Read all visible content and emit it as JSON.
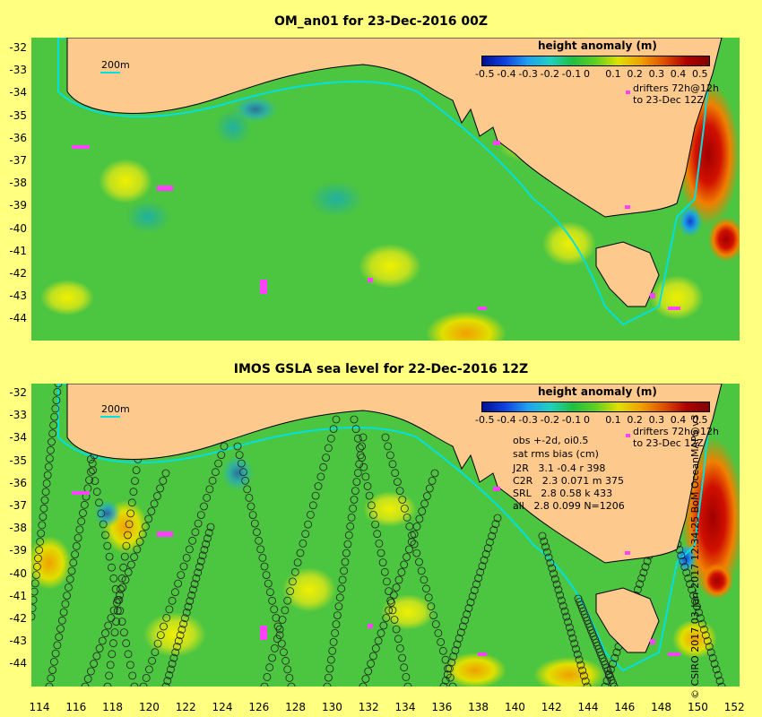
{
  "top_panel": {
    "title": "OM_an01 for 23-Dec-2016 00Z",
    "colorbar_title": "height anomaly (m)",
    "colorbar_ticks": [
      "-0.5",
      "-0.4",
      "-0.3",
      "-0.2",
      "-0.1",
      "0",
      "0.1",
      "0.2",
      "0.3",
      "0.4",
      "0.5"
    ],
    "scale_label": "200m",
    "drifters_line1": "drifters 72h@12h",
    "drifters_line2": "to 23-Dec 12Z"
  },
  "bottom_panel": {
    "title": "IMOS GSLA sea level  for 22-Dec-2016 12Z",
    "colorbar_title": "height anomaly (m)",
    "colorbar_ticks": [
      "-0.5",
      "-0.4",
      "-0.3",
      "-0.2",
      "-0.1",
      "0",
      "0.1",
      "0.2",
      "0.3",
      "0.4",
      "0.5"
    ],
    "scale_label": "200m",
    "drifters_line1": "drifters 72h@12h",
    "drifters_line2": "to 23-Dec 12Z",
    "stats": {
      "line1": "obs +-2d, oi0.5",
      "line2": "sat rms bias (cm)",
      "rows": [
        "J2R   3.1 -0.4 r 398",
        "C2R   2.3 0.071 m 375",
        "SRL   2.8 0.58 k 433",
        "all   2.8 0.099 N=1206"
      ]
    }
  },
  "latitudes": [
    "-32",
    "-33",
    "-34",
    "-35",
    "-36",
    "-37",
    "-38",
    "-39",
    "-40",
    "-41",
    "-42",
    "-43",
    "-44"
  ],
  "longitudes": [
    "114",
    "116",
    "118",
    "120",
    "122",
    "124",
    "126",
    "128",
    "130",
    "132",
    "134",
    "136",
    "138",
    "140",
    "142",
    "144",
    "146",
    "148",
    "150",
    "152"
  ],
  "copyright": "© CSIRO 2017  03-Jan-2017 12:34:25 BoM OceanMAPS v3",
  "colors": {
    "background": "#ffff80",
    "land": "#fdc98c",
    "ocean_base": "#40c040",
    "shelf": "#00e0e0",
    "drifter": "#ff40ff"
  }
}
